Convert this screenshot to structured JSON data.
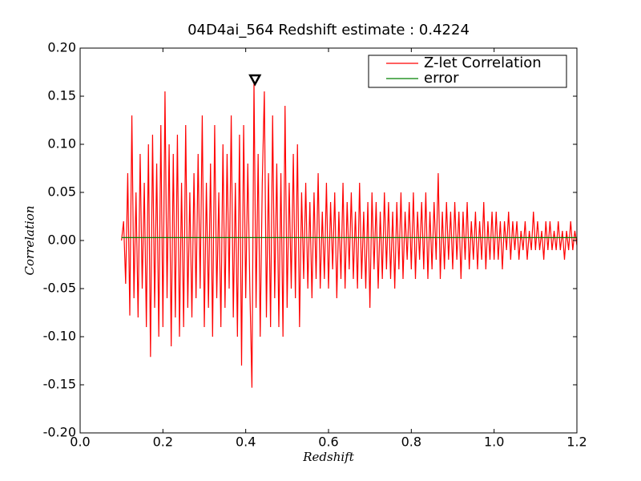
{
  "chart_data": {
    "type": "line",
    "title": "04D4ai_564 Redshift estimate : 0.4224",
    "xlabel": "Redshift",
    "ylabel": "Correlation",
    "xlim": [
      0,
      1.2
    ],
    "ylim": [
      -0.2,
      0.2
    ],
    "xticks": [
      {
        "value": 0,
        "label": "0.0"
      },
      {
        "value": 0.2,
        "label": "0.2"
      },
      {
        "value": 0.4,
        "label": "0.4"
      },
      {
        "value": 0.6,
        "label": "0.6"
      },
      {
        "value": 0.8,
        "label": "0.8"
      },
      {
        "value": 1.0,
        "label": "1.0"
      },
      {
        "value": 1.2,
        "label": "1.2"
      }
    ],
    "yticks": [
      {
        "value": -0.2,
        "label": "-0.20"
      },
      {
        "value": -0.15,
        "label": "-0.15"
      },
      {
        "value": -0.1,
        "label": "-0.10"
      },
      {
        "value": -0.05,
        "label": "-0.05"
      },
      {
        "value": 0,
        "label": "0.00"
      },
      {
        "value": 0.05,
        "label": "0.05"
      },
      {
        "value": 0.1,
        "label": "0.10"
      },
      {
        "value": 0.15,
        "label": "0.15"
      },
      {
        "value": 0.2,
        "label": "0.20"
      }
    ],
    "legend": "upper right",
    "marker": {
      "x": 0.4224,
      "y": 0.165
    },
    "series": [
      {
        "name": "Z-let Correlation",
        "color": "#ff0000",
        "x": [
          0.1,
          0.105,
          0.11,
          0.115,
          0.12,
          0.125,
          0.13,
          0.135,
          0.14,
          0.145,
          0.15,
          0.155,
          0.16,
          0.165,
          0.17,
          0.175,
          0.18,
          0.185,
          0.19,
          0.195,
          0.2,
          0.205,
          0.21,
          0.215,
          0.22,
          0.225,
          0.23,
          0.235,
          0.24,
          0.245,
          0.25,
          0.255,
          0.26,
          0.265,
          0.27,
          0.275,
          0.28,
          0.285,
          0.29,
          0.295,
          0.3,
          0.305,
          0.31,
          0.315,
          0.32,
          0.325,
          0.33,
          0.335,
          0.34,
          0.345,
          0.35,
          0.355,
          0.36,
          0.365,
          0.37,
          0.375,
          0.38,
          0.385,
          0.39,
          0.395,
          0.4,
          0.405,
          0.41,
          0.415,
          0.42,
          0.425,
          0.43,
          0.435,
          0.44,
          0.445,
          0.45,
          0.455,
          0.46,
          0.465,
          0.47,
          0.475,
          0.48,
          0.485,
          0.49,
          0.495,
          0.5,
          0.505,
          0.51,
          0.515,
          0.52,
          0.525,
          0.53,
          0.535,
          0.54,
          0.545,
          0.55,
          0.555,
          0.56,
          0.565,
          0.57,
          0.575,
          0.58,
          0.585,
          0.59,
          0.595,
          0.6,
          0.605,
          0.61,
          0.615,
          0.62,
          0.625,
          0.63,
          0.635,
          0.64,
          0.645,
          0.65,
          0.655,
          0.66,
          0.665,
          0.67,
          0.675,
          0.68,
          0.685,
          0.69,
          0.695,
          0.7,
          0.705,
          0.71,
          0.715,
          0.72,
          0.725,
          0.73,
          0.735,
          0.74,
          0.745,
          0.75,
          0.755,
          0.76,
          0.765,
          0.77,
          0.775,
          0.78,
          0.785,
          0.79,
          0.795,
          0.8,
          0.805,
          0.81,
          0.815,
          0.82,
          0.825,
          0.83,
          0.835,
          0.84,
          0.845,
          0.85,
          0.855,
          0.86,
          0.865,
          0.87,
          0.875,
          0.88,
          0.885,
          0.89,
          0.895,
          0.9,
          0.905,
          0.91,
          0.915,
          0.92,
          0.925,
          0.93,
          0.935,
          0.94,
          0.945,
          0.95,
          0.955,
          0.96,
          0.965,
          0.97,
          0.975,
          0.98,
          0.985,
          0.99,
          0.995,
          1.0,
          1.005,
          1.01,
          1.015,
          1.02,
          1.025,
          1.03,
          1.035,
          1.04,
          1.045,
          1.05,
          1.055,
          1.06,
          1.065,
          1.07,
          1.075,
          1.08,
          1.085,
          1.09,
          1.095,
          1.1,
          1.105,
          1.11,
          1.115,
          1.12,
          1.125,
          1.13,
          1.135,
          1.14,
          1.145,
          1.15,
          1.155,
          1.16,
          1.165,
          1.17,
          1.175,
          1.18,
          1.185,
          1.19,
          1.195,
          1.2
        ],
        "values": [
          0.0,
          0.02,
          -0.045,
          0.07,
          -0.078,
          0.13,
          -0.06,
          0.05,
          -0.08,
          0.09,
          -0.05,
          0.06,
          -0.09,
          0.1,
          -0.121,
          0.11,
          -0.07,
          0.08,
          -0.1,
          0.12,
          -0.09,
          0.155,
          -0.06,
          0.1,
          -0.11,
          0.09,
          -0.08,
          0.11,
          -0.1,
          0.06,
          -0.09,
          0.12,
          -0.07,
          0.05,
          -0.08,
          0.07,
          -0.06,
          0.09,
          -0.05,
          0.13,
          -0.09,
          0.06,
          -0.07,
          0.08,
          -0.1,
          0.12,
          -0.06,
          0.05,
          -0.09,
          0.1,
          -0.07,
          0.09,
          -0.05,
          0.13,
          -0.08,
          0.06,
          -0.1,
          0.11,
          -0.13,
          0.12,
          -0.06,
          0.08,
          -0.05,
          -0.153,
          0.165,
          -0.07,
          0.09,
          -0.1,
          0.06,
          0.155,
          -0.08,
          0.07,
          -0.09,
          0.13,
          -0.06,
          0.08,
          -0.09,
          0.07,
          -0.1,
          0.14,
          -0.07,
          0.06,
          -0.05,
          0.09,
          -0.06,
          0.1,
          -0.09,
          0.05,
          -0.04,
          0.06,
          -0.05,
          0.04,
          -0.06,
          0.05,
          -0.04,
          0.07,
          -0.05,
          0.03,
          -0.04,
          0.06,
          -0.05,
          0.04,
          -0.03,
          0.05,
          -0.06,
          0.03,
          -0.04,
          0.06,
          -0.05,
          0.04,
          -0.03,
          0.05,
          -0.04,
          0.03,
          -0.05,
          0.06,
          -0.04,
          0.03,
          -0.05,
          0.04,
          -0.07,
          0.05,
          -0.03,
          0.04,
          -0.05,
          0.03,
          -0.04,
          0.05,
          -0.03,
          0.04,
          -0.04,
          0.03,
          -0.05,
          0.04,
          -0.03,
          0.05,
          -0.04,
          0.03,
          -0.02,
          0.04,
          -0.03,
          0.05,
          -0.04,
          0.03,
          -0.02,
          0.04,
          -0.03,
          0.05,
          -0.04,
          0.03,
          -0.03,
          0.04,
          -0.02,
          0.07,
          -0.04,
          0.03,
          -0.03,
          0.04,
          -0.02,
          0.03,
          -0.03,
          0.04,
          -0.02,
          0.03,
          -0.04,
          0.03,
          -0.02,
          0.04,
          -0.03,
          0.02,
          -0.02,
          0.03,
          -0.03,
          0.02,
          -0.02,
          0.04,
          -0.03,
          0.02,
          -0.02,
          0.03,
          -0.02,
          0.03,
          -0.02,
          0.02,
          -0.03,
          0.02,
          -0.01,
          0.03,
          -0.02,
          0.02,
          -0.01,
          0.02,
          -0.02,
          0.01,
          -0.01,
          0.02,
          -0.02,
          0.01,
          -0.01,
          0.03,
          -0.01,
          0.02,
          -0.01,
          0.01,
          -0.02,
          0.02,
          -0.01,
          0.02,
          -0.01,
          0.01,
          -0.01,
          0.02,
          -0.01,
          0.01,
          -0.02,
          0.01,
          -0.01,
          0.02,
          -0.01,
          0.01,
          -0.005
        ]
      },
      {
        "name": "error",
        "color": "#008000",
        "x": [
          0.1,
          1.2
        ],
        "values": [
          0.003,
          0.003
        ]
      }
    ]
  }
}
